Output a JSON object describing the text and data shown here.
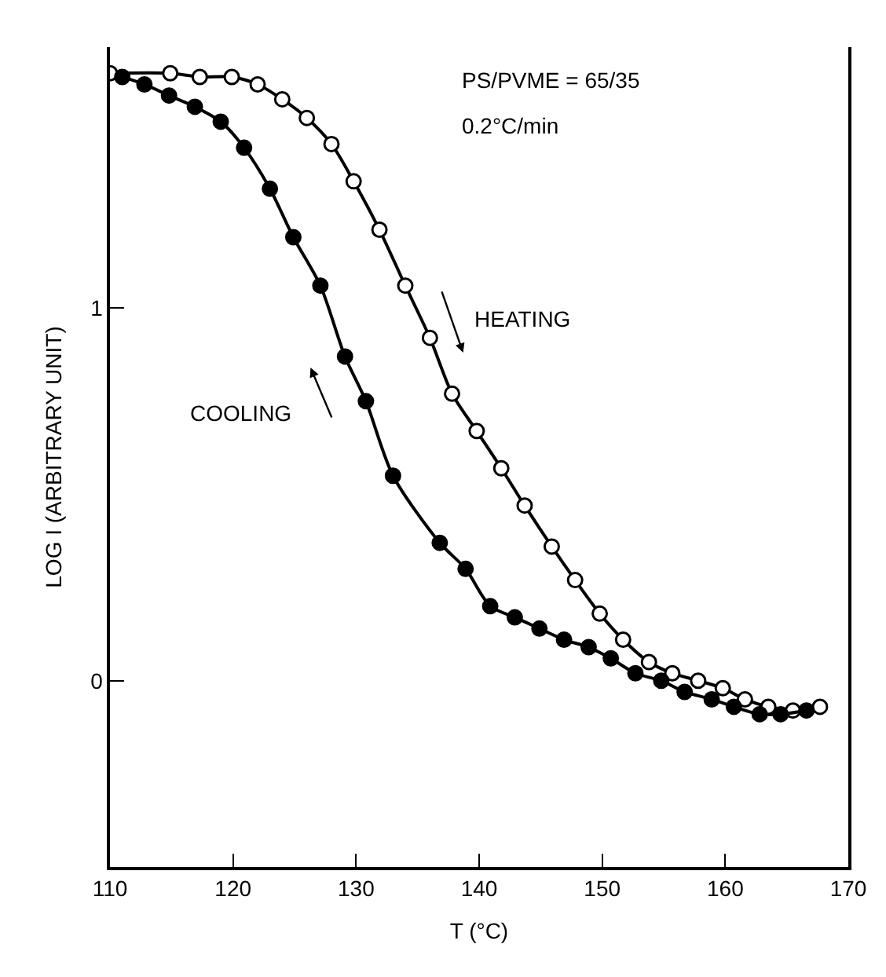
{
  "chart_data": {
    "type": "line",
    "xlabel": "T (°C)",
    "ylabel": "LOG I (ARBITRARY UNIT)",
    "xlim": [
      110,
      170
    ],
    "xticks": [
      110,
      120,
      130,
      140,
      150,
      160,
      170
    ],
    "ylim": [
      -0.5,
      1.7
    ],
    "yticks": [
      0,
      1
    ],
    "line_style": "solid",
    "annotations": [
      "PS/PVME = 65/35",
      "0.2°C/min",
      "HEATING",
      "COOLING"
    ],
    "series": [
      {
        "color": "#000000",
        "marker": "circle-open",
        "x": [
          110.0,
          114.9,
          117.3,
          119.9,
          122.0,
          124.0,
          126.0,
          128.0,
          129.8,
          131.9,
          134.0,
          136.0,
          137.8,
          139.8,
          141.8,
          143.7,
          145.9,
          147.8,
          149.8,
          151.7,
          153.8,
          155.7,
          157.8,
          159.8,
          161.6,
          163.5,
          165.5,
          167.7
        ],
        "values": [
          1.63,
          1.63,
          1.62,
          1.62,
          1.6,
          1.56,
          1.51,
          1.44,
          1.34,
          1.21,
          1.06,
          0.92,
          0.77,
          0.67,
          0.57,
          0.47,
          0.36,
          0.27,
          0.18,
          0.11,
          0.05,
          0.02,
          0.0,
          -0.02,
          -0.05,
          -0.07,
          -0.08,
          -0.07
        ]
      },
      {
        "color": "#000000",
        "marker": "circle",
        "x": [
          111.0,
          112.8,
          114.8,
          116.9,
          119.0,
          120.9,
          123.0,
          124.9,
          127.1,
          129.1,
          130.8,
          133.0,
          136.8,
          138.9,
          140.9,
          142.9,
          144.9,
          146.9,
          148.9,
          150.7,
          152.7,
          154.8,
          156.7,
          158.9,
          160.7,
          162.8,
          164.5,
          166.6
        ],
        "values": [
          1.62,
          1.6,
          1.57,
          1.54,
          1.5,
          1.43,
          1.32,
          1.19,
          1.06,
          0.87,
          0.75,
          0.55,
          0.37,
          0.3,
          0.2,
          0.17,
          0.14,
          0.11,
          0.09,
          0.06,
          0.02,
          0.0,
          -0.03,
          -0.05,
          -0.07,
          -0.09,
          -0.09,
          -0.08
        ]
      }
    ]
  }
}
